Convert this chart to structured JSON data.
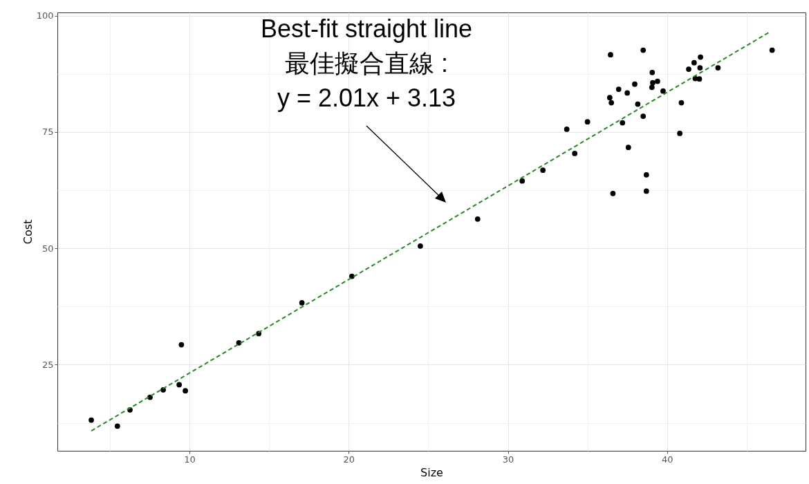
{
  "chart_data": {
    "type": "scatter",
    "xlabel": "Size",
    "ylabel": "Cost",
    "xlim": [
      1.7,
      48.7
    ],
    "ylim": [
      6.5,
      100.7
    ],
    "xticks": [
      {
        "value": 5,
        "label": null
      },
      10,
      {
        "value": 15,
        "label": null
      },
      20,
      {
        "value": 25,
        "label": null
      },
      30,
      {
        "value": 35,
        "label": null
      },
      40,
      {
        "value": 45,
        "label": null
      }
    ],
    "yticks": [
      {
        "value": 12.5,
        "label": null
      },
      25,
      {
        "value": 37.5,
        "label": null
      },
      50,
      {
        "value": 62.5,
        "label": null
      },
      75,
      {
        "value": 87.5,
        "label": null
      },
      100
    ],
    "grid": true,
    "annotations": [
      "Best-fit straight line\n最佳擬合直線 :\ny = 2.01x + 3.13"
    ],
    "series": [
      {
        "marker": "circle",
        "color": "#000000",
        "x": [
          3.83,
          5.47,
          6.26,
          7.52,
          8.35,
          9.35,
          9.49,
          9.74,
          13.1,
          14.35,
          17.06,
          20.2,
          24.5,
          28.1,
          30.9,
          32.2,
          33.7,
          34.2,
          35.0,
          36.45,
          38.5,
          36.4,
          36.5,
          36.96,
          37.5,
          37.97,
          38.16,
          37.2,
          38.5,
          37.57,
          38.7,
          36.6,
          38.7,
          39.07,
          39.1,
          39.05,
          39.4,
          39.75,
          40.9,
          40.8,
          41.36,
          41.7,
          42.1,
          42.07,
          41.77,
          42.03,
          43.2,
          46.6
        ],
        "values": [
          13.1,
          11.8,
          15.3,
          18.0,
          19.6,
          20.7,
          29.3,
          19.4,
          29.7,
          31.7,
          38.3,
          44.0,
          50.5,
          56.3,
          64.5,
          66.8,
          75.6,
          70.4,
          77.2,
          91.6,
          92.6,
          82.4,
          81.3,
          84.2,
          83.4,
          85.3,
          81.0,
          77.0,
          78.4,
          71.7,
          65.8,
          61.8,
          62.3,
          87.8,
          85.6,
          84.6,
          85.9,
          83.8,
          81.3,
          74.7,
          88.5,
          89.9,
          91.1,
          88.8,
          86.5,
          86.4,
          88.8,
          92.6
        ]
      },
      {
        "type": "line",
        "color": "#228b22",
        "line_style": "dashed",
        "x": [
          3.83,
          46.4
        ],
        "values": [
          10.8,
          96.4
        ]
      }
    ]
  }
}
